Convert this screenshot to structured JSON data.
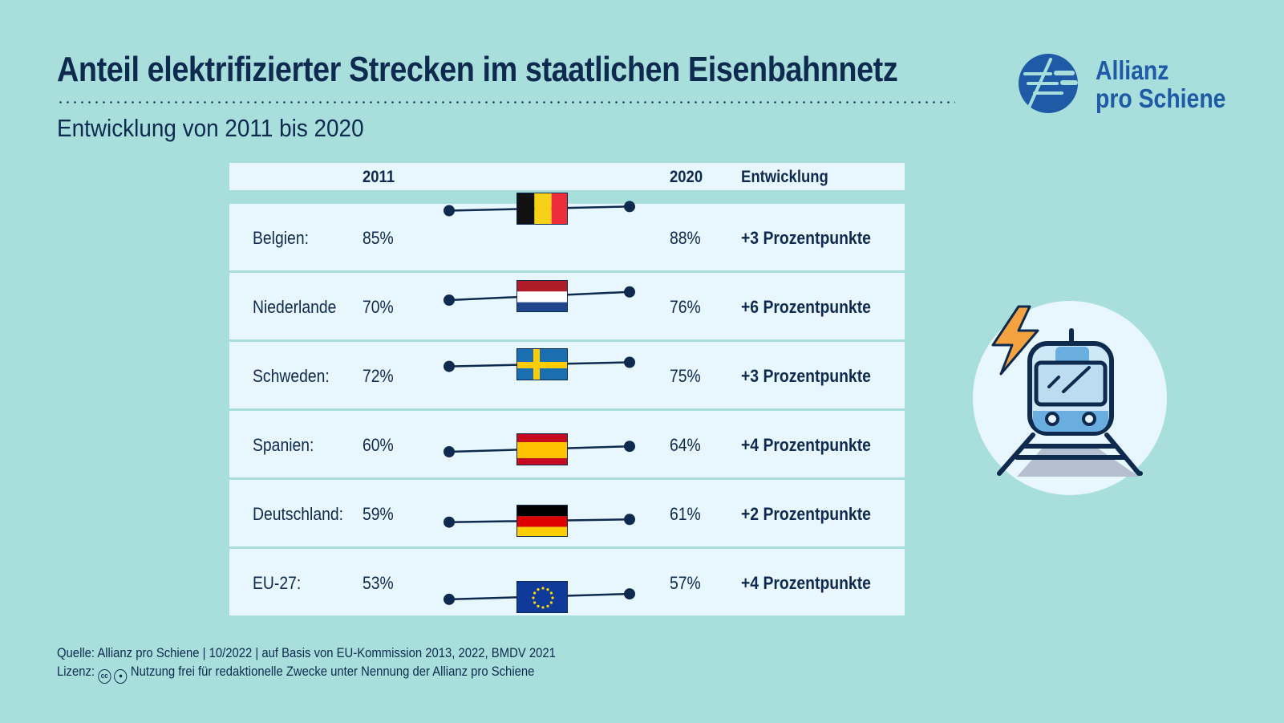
{
  "title": "Anteil elektrifizierter Strecken im staatlichen Eisenbahnnetz",
  "subtitle": "Entwicklung von 2011 bis 2020",
  "logo": {
    "line1": "Allianz",
    "line2": "pro Schiene"
  },
  "headers": {
    "col2011": "2011",
    "col2020": "2020",
    "colDev": "Entwicklung"
  },
  "chart_data": {
    "type": "table",
    "title": "Anteil elektrifizierter Strecken im staatlichen Eisenbahnnetz",
    "subtitle": "Entwicklung von 2011 bis 2020",
    "columns": [
      "2011",
      "2020",
      "Entwicklung"
    ],
    "rows": [
      {
        "country": "Belgien:",
        "v2011": 85,
        "v2020": 88,
        "label2011": "85%",
        "label2020": "88%",
        "dev": "+3 Prozentpunkte",
        "flag": "belgium"
      },
      {
        "country": "Niederlande",
        "v2011": 70,
        "v2020": 76,
        "label2011": "70%",
        "label2020": "76%",
        "dev": "+6 Prozentpunkte",
        "flag": "netherlands"
      },
      {
        "country": "Schweden:",
        "v2011": 72,
        "v2020": 75,
        "label2011": "72%",
        "label2020": "75%",
        "dev": "+3 Prozentpunkte",
        "flag": "sweden"
      },
      {
        "country": "Spanien:",
        "v2011": 60,
        "v2020": 64,
        "label2011": "60%",
        "label2020": "64%",
        "dev": "+4 Prozentpunkte",
        "flag": "spain"
      },
      {
        "country": "Deutschland:",
        "v2011": 59,
        "v2020": 61,
        "label2011": "59%",
        "label2020": "61%",
        "dev": "+2 Prozentpunkte",
        "flag": "germany"
      },
      {
        "country": "EU-27:",
        "v2011": 53,
        "v2020": 57,
        "label2011": "53%",
        "label2020": "57%",
        "dev": "+4 Prozentpunkte",
        "flag": "eu"
      }
    ]
  },
  "footer": {
    "source": "Quelle: Allianz pro Schiene | 10/2022 | auf Basis von EU-Kommission 2013, 2022, BMDV 2021",
    "license_label": "Lizenz:",
    "license_text": "Nutzung frei für redaktionelle Zwecke unter Nennung der Allianz pro Schiene"
  },
  "colors": {
    "background": "#a8dedb",
    "navy": "#0f2a4f",
    "row": "#e8f6fd",
    "brand_blue": "#1f5aa6"
  },
  "icons": [
    "allianz-logo-icon",
    "train-icon",
    "lightning-icon",
    "creative-commons-icon"
  ]
}
